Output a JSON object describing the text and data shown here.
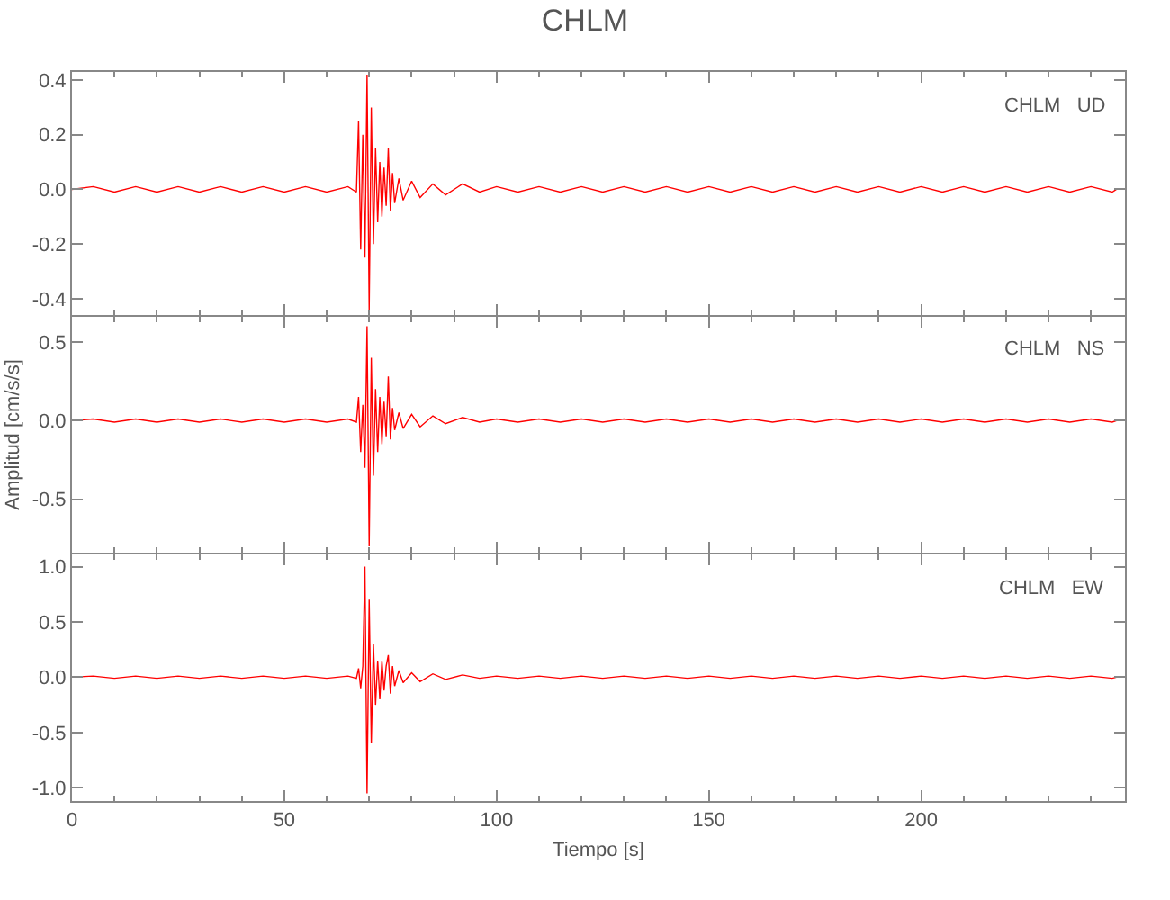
{
  "chart_data": [
    {
      "type": "line",
      "title": "CHLM",
      "annotations": [
        "CHLM   UD"
      ],
      "tick_labels": "y",
      "xlim": [
        0,
        248
      ],
      "xticks": [
        0,
        50,
        100,
        150,
        200
      ],
      "ylim": [
        -0.46,
        0.43
      ],
      "yticks": [
        {
          "value": 0.4,
          "label": "0.4"
        },
        {
          "value": 0.2,
          "label": "0.2"
        },
        {
          "value": 0,
          "label": "0.0"
        },
        {
          "value": -0.2,
          "label": "-0.2"
        },
        {
          "value": -0.4,
          "label": "-0.4"
        }
      ],
      "x": [
        0,
        5,
        10,
        15,
        20,
        25,
        30,
        35,
        40,
        45,
        50,
        55,
        60,
        65,
        67,
        67.5,
        68,
        68.5,
        69,
        69.5,
        70,
        70.5,
        71,
        71.5,
        72,
        72.5,
        73,
        73.5,
        74,
        74.5,
        75,
        75.5,
        76,
        77,
        78,
        80,
        82,
        85,
        88,
        92,
        96,
        100,
        105,
        110,
        115,
        120,
        125,
        130,
        135,
        140,
        145,
        150,
        155,
        160,
        165,
        170,
        175,
        180,
        185,
        190,
        195,
        200,
        205,
        210,
        215,
        220,
        225,
        230,
        235,
        240,
        245,
        246
      ],
      "series": [
        {
          "color": "#ff0000",
          "values": [
            0,
            0.01,
            -0.01,
            0.01,
            -0.01,
            0.01,
            -0.01,
            0.01,
            -0.01,
            0.01,
            -0.01,
            0.01,
            -0.01,
            0.01,
            -0.01,
            0.25,
            -0.22,
            0.2,
            -0.25,
            0.42,
            -0.44,
            0.3,
            -0.2,
            0.15,
            -0.12,
            0.1,
            -0.1,
            0.08,
            -0.06,
            0.15,
            -0.08,
            0.06,
            -0.05,
            0.04,
            -0.04,
            0.03,
            -0.03,
            0.02,
            -0.02,
            0.02,
            -0.01,
            0.01,
            -0.01,
            0.01,
            -0.01,
            0.01,
            -0.01,
            0.01,
            -0.01,
            0.01,
            -0.01,
            0.01,
            -0.01,
            0.01,
            -0.01,
            0.01,
            -0.01,
            0.01,
            -0.01,
            0.01,
            -0.01,
            0.01,
            -0.01,
            0.01,
            -0.01,
            0.01,
            -0.01,
            0.01,
            -0.01,
            0.01,
            -0.01,
            0
          ]
        }
      ]
    },
    {
      "type": "line",
      "ylabel": "Amplitud [cm/s/s]",
      "annotations": [
        "CHLM   NS"
      ],
      "tick_labels": "y",
      "xlim": [
        0,
        248
      ],
      "xticks": [
        0,
        50,
        100,
        150,
        200
      ],
      "ylim": [
        -0.84,
        0.66
      ],
      "yticks": [
        {
          "value": 0.5,
          "label": "0.5"
        },
        {
          "value": 0,
          "label": "0.0"
        },
        {
          "value": -0.5,
          "label": "-0.5"
        }
      ],
      "x": [
        0,
        5,
        10,
        15,
        20,
        25,
        30,
        35,
        40,
        45,
        50,
        55,
        60,
        65,
        67,
        67.5,
        68,
        68.5,
        69,
        69.5,
        70,
        70.5,
        71,
        71.5,
        72,
        72.5,
        73,
        73.5,
        74,
        74.5,
        75,
        75.5,
        76,
        77,
        78,
        80,
        82,
        85,
        88,
        92,
        96,
        100,
        105,
        110,
        115,
        120,
        125,
        130,
        135,
        140,
        145,
        150,
        155,
        160,
        165,
        170,
        175,
        180,
        185,
        190,
        195,
        200,
        205,
        210,
        215,
        220,
        225,
        230,
        235,
        240,
        245,
        246
      ],
      "series": [
        {
          "color": "#ff0000",
          "values": [
            0,
            0.01,
            -0.01,
            0.01,
            -0.01,
            0.01,
            -0.01,
            0.01,
            -0.01,
            0.01,
            -0.01,
            0.01,
            -0.01,
            0.01,
            -0.01,
            0.15,
            -0.2,
            0.1,
            -0.3,
            0.6,
            -0.8,
            0.4,
            -0.35,
            0.2,
            -0.2,
            0.15,
            -0.15,
            0.12,
            -0.1,
            0.28,
            -0.12,
            0.08,
            -0.06,
            0.05,
            -0.05,
            0.04,
            -0.04,
            0.03,
            -0.02,
            0.02,
            -0.01,
            0.01,
            -0.01,
            0.01,
            -0.01,
            0.01,
            -0.01,
            0.01,
            -0.01,
            0.01,
            -0.01,
            0.01,
            -0.01,
            0.01,
            -0.01,
            0.01,
            -0.01,
            0.01,
            -0.01,
            0.01,
            -0.01,
            0.01,
            -0.01,
            0.01,
            -0.01,
            0.01,
            -0.01,
            0.01,
            -0.01,
            0.01,
            -0.01,
            0
          ]
        }
      ]
    },
    {
      "type": "line",
      "xlabel": "Tiempo [s]",
      "annotations": [
        "CHLM   EW"
      ],
      "xlim": [
        0,
        248
      ],
      "xticks": [
        0,
        50,
        100,
        150,
        200
      ],
      "ylim": [
        -1.12,
        1.11
      ],
      "yticks": [
        {
          "value": 1,
          "label": "1.0"
        },
        {
          "value": 0.5,
          "label": "0.5"
        },
        {
          "value": 0,
          "label": "0.0"
        },
        {
          "value": -0.5,
          "label": "-0.5"
        },
        {
          "value": -1,
          "label": "-1.0"
        }
      ],
      "x": [
        0,
        5,
        10,
        15,
        20,
        25,
        30,
        35,
        40,
        45,
        50,
        55,
        60,
        65,
        67,
        67.5,
        68,
        68.5,
        69,
        69.5,
        70,
        70.5,
        71,
        71.5,
        72,
        72.5,
        73,
        73.5,
        74,
        74.5,
        75,
        75.5,
        76,
        77,
        78,
        80,
        82,
        85,
        88,
        92,
        96,
        100,
        105,
        110,
        115,
        120,
        125,
        130,
        135,
        140,
        145,
        150,
        155,
        160,
        165,
        170,
        175,
        180,
        185,
        190,
        195,
        200,
        205,
        210,
        215,
        220,
        225,
        230,
        235,
        240,
        245,
        246
      ],
      "series": [
        {
          "color": "#ff0000",
          "values": [
            0,
            0.01,
            -0.01,
            0.01,
            -0.01,
            0.01,
            -0.01,
            0.01,
            -0.01,
            0.01,
            -0.01,
            0.01,
            -0.01,
            0.01,
            -0.01,
            0.08,
            -0.1,
            0.1,
            1.0,
            -1.05,
            0.7,
            -0.6,
            0.3,
            -0.25,
            0.15,
            -0.2,
            0.15,
            -0.12,
            0.1,
            0.2,
            -0.15,
            0.1,
            -0.08,
            0.06,
            -0.05,
            0.04,
            -0.04,
            0.03,
            -0.02,
            0.02,
            -0.01,
            0.01,
            -0.01,
            0.01,
            -0.01,
            0.01,
            -0.01,
            0.01,
            -0.01,
            0.01,
            -0.01,
            0.01,
            -0.01,
            0.01,
            -0.01,
            0.01,
            -0.01,
            0.01,
            -0.01,
            0.01,
            -0.01,
            0.01,
            -0.01,
            0.01,
            -0.01,
            0.01,
            -0.01,
            0.01,
            -0.01,
            0.01,
            -0.01,
            0
          ]
        }
      ]
    }
  ]
}
